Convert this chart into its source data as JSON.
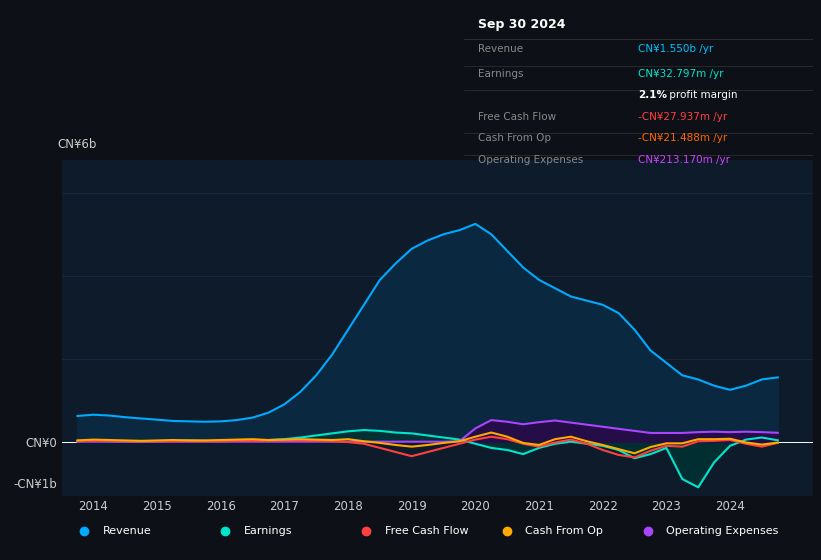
{
  "background_color": "#0d1117",
  "plot_bg_color": "#0d1b2a",
  "ylim": [
    -1300000000.0,
    6800000000.0
  ],
  "xlim_start": 2013.5,
  "xlim_end": 2025.3,
  "xticks": [
    2014,
    2015,
    2016,
    2017,
    2018,
    2019,
    2020,
    2021,
    2022,
    2023,
    2024
  ],
  "gridline_color": "#1a2a3a",
  "gridline_y": [
    0,
    2000000000,
    4000000000,
    6000000000
  ],
  "series": {
    "revenue": {
      "color": "#00aaff",
      "fill_color": "#0a2840",
      "x": [
        2013.75,
        2014.0,
        2014.25,
        2014.5,
        2014.75,
        2015.0,
        2015.25,
        2015.5,
        2015.75,
        2016.0,
        2016.25,
        2016.5,
        2016.75,
        2017.0,
        2017.25,
        2017.5,
        2017.75,
        2018.0,
        2018.25,
        2018.5,
        2018.75,
        2019.0,
        2019.25,
        2019.5,
        2019.75,
        2020.0,
        2020.25,
        2020.5,
        2020.75,
        2021.0,
        2021.25,
        2021.5,
        2021.75,
        2022.0,
        2022.25,
        2022.5,
        2022.75,
        2023.0,
        2023.25,
        2023.5,
        2023.75,
        2024.0,
        2024.25,
        2024.5,
        2024.75
      ],
      "y": [
        620000000.0,
        650000000.0,
        630000000.0,
        590000000.0,
        560000000.0,
        530000000.0,
        500000000.0,
        490000000.0,
        480000000.0,
        490000000.0,
        520000000.0,
        580000000.0,
        700000000.0,
        900000000.0,
        1200000000.0,
        1600000000.0,
        2100000000.0,
        2700000000.0,
        3300000000.0,
        3900000000.0,
        4300000000.0,
        4650000000.0,
        4850000000.0,
        5000000000.0,
        5100000000.0,
        5250000000.0,
        5000000000.0,
        4600000000.0,
        4200000000.0,
        3900000000.0,
        3700000000.0,
        3500000000.0,
        3400000000.0,
        3300000000.0,
        3100000000.0,
        2700000000.0,
        2200000000.0,
        1900000000.0,
        1600000000.0,
        1500000000.0,
        1350000000.0,
        1250000000.0,
        1350000000.0,
        1500000000.0,
        1550000000.0
      ]
    },
    "earnings": {
      "color": "#00e5cc",
      "fill_color": "#003333",
      "x": [
        2013.75,
        2014.0,
        2014.25,
        2014.5,
        2014.75,
        2015.0,
        2015.25,
        2015.5,
        2015.75,
        2016.0,
        2016.25,
        2016.5,
        2016.75,
        2017.0,
        2017.25,
        2017.5,
        2017.75,
        2018.0,
        2018.25,
        2018.5,
        2018.75,
        2019.0,
        2019.25,
        2019.5,
        2019.75,
        2020.0,
        2020.25,
        2020.5,
        2020.75,
        2021.0,
        2021.25,
        2021.5,
        2021.75,
        2022.0,
        2022.25,
        2022.5,
        2022.75,
        2023.0,
        2023.25,
        2023.5,
        2023.75,
        2024.0,
        2024.25,
        2024.5,
        2024.75
      ],
      "y": [
        20000000.0,
        15000000.0,
        10000000.0,
        5000000.0,
        0,
        10000000.0,
        20000000.0,
        30000000.0,
        20000000.0,
        10000000.0,
        20000000.0,
        30000000.0,
        40000000.0,
        60000000.0,
        100000000.0,
        150000000.0,
        200000000.0,
        250000000.0,
        280000000.0,
        260000000.0,
        220000000.0,
        200000000.0,
        150000000.0,
        100000000.0,
        50000000.0,
        -50000000.0,
        -150000000.0,
        -200000000.0,
        -300000000.0,
        -150000000.0,
        -50000000.0,
        0,
        -50000000.0,
        -100000000.0,
        -200000000.0,
        -400000000.0,
        -300000000.0,
        -150000000.0,
        -900000000.0,
        -1100000000.0,
        -500000000.0,
        -100000000.0,
        50000000.0,
        100000000.0,
        32800000.0
      ]
    },
    "free_cash_flow": {
      "color": "#ff4040",
      "x": [
        2013.75,
        2014.0,
        2014.25,
        2014.5,
        2014.75,
        2015.0,
        2015.25,
        2015.5,
        2015.75,
        2016.0,
        2016.25,
        2016.5,
        2016.75,
        2017.0,
        2017.25,
        2017.5,
        2017.75,
        2018.0,
        2018.25,
        2018.5,
        2018.75,
        2019.0,
        2019.25,
        2019.5,
        2019.75,
        2020.0,
        2020.25,
        2020.5,
        2020.75,
        2021.0,
        2021.25,
        2021.5,
        2021.75,
        2022.0,
        2022.25,
        2022.5,
        2022.75,
        2023.0,
        2023.25,
        2023.5,
        2023.75,
        2024.0,
        2024.25,
        2024.5,
        2024.75
      ],
      "y": [
        10000000.0,
        20000000.0,
        15000000.0,
        10000000.0,
        5000000.0,
        10000000.0,
        10000000.0,
        10000000.0,
        10000000.0,
        10000000.0,
        20000000.0,
        20000000.0,
        20000000.0,
        30000000.0,
        30000000.0,
        20000000.0,
        10000000.0,
        -10000000.0,
        -50000000.0,
        -150000000.0,
        -250000000.0,
        -350000000.0,
        -250000000.0,
        -150000000.0,
        -50000000.0,
        50000000.0,
        120000000.0,
        60000000.0,
        -50000000.0,
        -120000000.0,
        -20000000.0,
        50000000.0,
        -50000000.0,
        -200000000.0,
        -320000000.0,
        -380000000.0,
        -220000000.0,
        -100000000.0,
        -120000000.0,
        10000000.0,
        20000000.0,
        40000000.0,
        -50000000.0,
        -120000000.0,
        -28000000.0
      ]
    },
    "cash_from_op": {
      "color": "#ffaa00",
      "x": [
        2013.75,
        2014.0,
        2014.25,
        2014.5,
        2014.75,
        2015.0,
        2015.25,
        2015.5,
        2015.75,
        2016.0,
        2016.25,
        2016.5,
        2016.75,
        2017.0,
        2017.25,
        2017.5,
        2017.75,
        2018.0,
        2018.25,
        2018.5,
        2018.75,
        2019.0,
        2019.25,
        2019.5,
        2019.75,
        2020.0,
        2020.25,
        2020.5,
        2020.75,
        2021.0,
        2021.25,
        2021.5,
        2021.75,
        2022.0,
        2022.25,
        2022.5,
        2022.75,
        2023.0,
        2023.25,
        2023.5,
        2023.75,
        2024.0,
        2024.25,
        2024.5,
        2024.75
      ],
      "y": [
        30000000.0,
        50000000.0,
        40000000.0,
        30000000.0,
        20000000.0,
        30000000.0,
        40000000.0,
        30000000.0,
        30000000.0,
        40000000.0,
        50000000.0,
        60000000.0,
        40000000.0,
        50000000.0,
        60000000.0,
        50000000.0,
        40000000.0,
        60000000.0,
        10000000.0,
        -30000000.0,
        -80000000.0,
        -120000000.0,
        -80000000.0,
        -30000000.0,
        10000000.0,
        120000000.0,
        220000000.0,
        120000000.0,
        -30000000.0,
        -80000000.0,
        60000000.0,
        120000000.0,
        10000000.0,
        -80000000.0,
        -180000000.0,
        -280000000.0,
        -130000000.0,
        -40000000.0,
        -40000000.0,
        60000000.0,
        60000000.0,
        70000000.0,
        -20000000.0,
        -70000000.0,
        -21500000.0
      ]
    },
    "operating_expenses": {
      "color": "#aa44ff",
      "fill_color": "#2a0a4a",
      "x": [
        2013.75,
        2014.0,
        2014.25,
        2014.5,
        2014.75,
        2015.0,
        2015.25,
        2015.5,
        2015.75,
        2016.0,
        2016.25,
        2016.5,
        2016.75,
        2017.0,
        2017.25,
        2017.5,
        2017.75,
        2018.0,
        2018.25,
        2018.5,
        2018.75,
        2019.0,
        2019.25,
        2019.5,
        2019.75,
        2020.0,
        2020.25,
        2020.5,
        2020.75,
        2021.0,
        2021.25,
        2021.5,
        2021.75,
        2022.0,
        2022.25,
        2022.5,
        2022.75,
        2023.0,
        2023.25,
        2023.5,
        2023.75,
        2024.0,
        2024.25,
        2024.5,
        2024.75
      ],
      "y": [
        0,
        0,
        0,
        0,
        0,
        0,
        0,
        0,
        0,
        0,
        0,
        0,
        0,
        0,
        0,
        0,
        0,
        0,
        0,
        0,
        0,
        0,
        0,
        0,
        10000000.0,
        320000000.0,
        520000000.0,
        480000000.0,
        420000000.0,
        470000000.0,
        510000000.0,
        460000000.0,
        410000000.0,
        360000000.0,
        310000000.0,
        260000000.0,
        210000000.0,
        210000000.0,
        210000000.0,
        230000000.0,
        240000000.0,
        230000000.0,
        240000000.0,
        230000000.0,
        213000000.0
      ]
    }
  },
  "legend": [
    {
      "label": "Revenue",
      "color": "#00aaff"
    },
    {
      "label": "Earnings",
      "color": "#00e5cc"
    },
    {
      "label": "Free Cash Flow",
      "color": "#ff4040"
    },
    {
      "label": "Cash From Op",
      "color": "#ffaa00"
    },
    {
      "label": "Operating Expenses",
      "color": "#aa44ff"
    }
  ],
  "info_rows": [
    {
      "label": "Revenue",
      "value": "CN¥1.550b",
      "suffix": " /yr",
      "value_color": "#00bfff"
    },
    {
      "label": "Earnings",
      "value": "CN¥32.797m",
      "suffix": " /yr",
      "value_color": "#00e5cc"
    },
    {
      "label": "",
      "value": "2.1%",
      "suffix": " profit margin",
      "value_color": "#ffffff",
      "bold": true
    },
    {
      "label": "Free Cash Flow",
      "value": "-CN¥27.937m",
      "suffix": " /yr",
      "value_color": "#ff4040"
    },
    {
      "label": "Cash From Op",
      "value": "-CN¥21.488m",
      "suffix": " /yr",
      "value_color": "#ff6600"
    },
    {
      "label": "Operating Expenses",
      "value": "CN¥213.170m",
      "suffix": " /yr",
      "value_color": "#cc44ff"
    }
  ]
}
